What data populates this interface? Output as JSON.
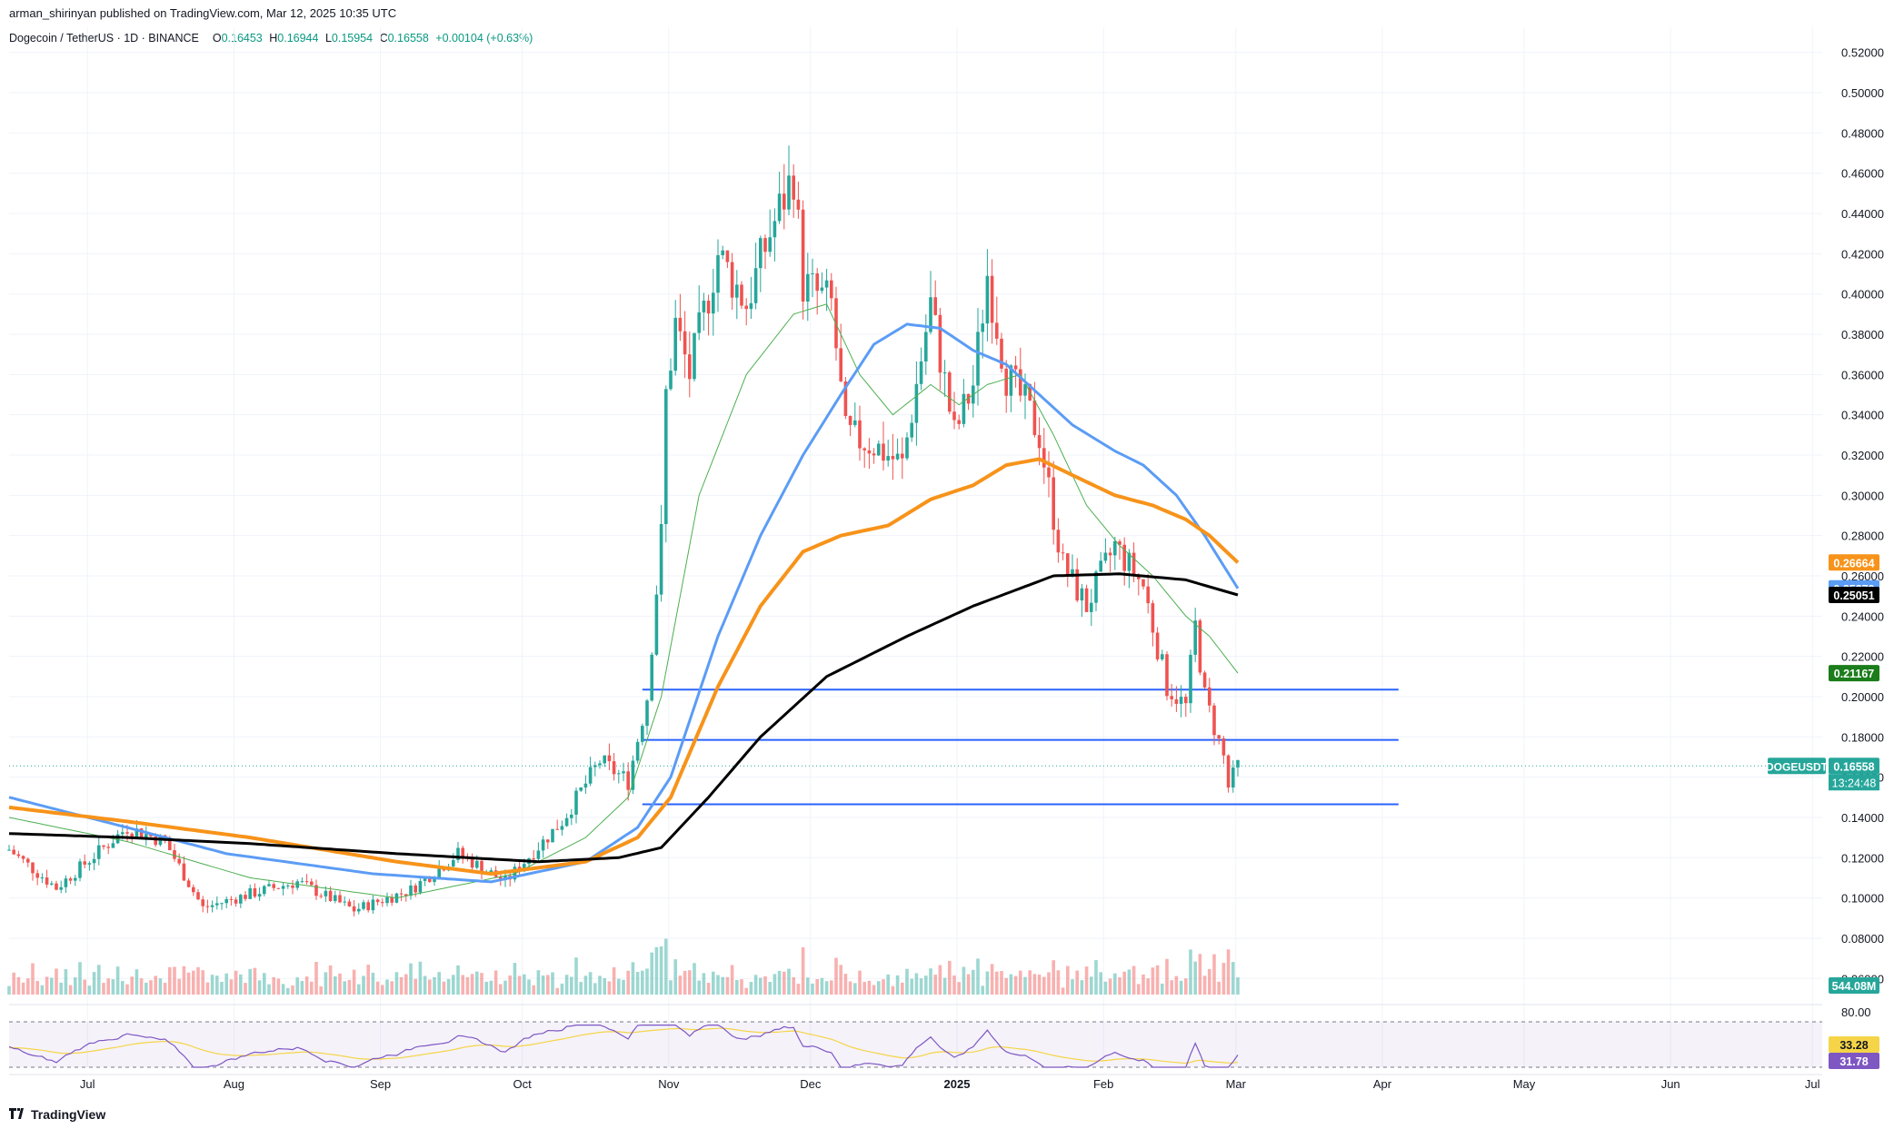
{
  "header": {
    "published": "arman_shirinyan published on TradingView.com, Mar 12, 2025 10:35 UTC",
    "symbol": "Dogecoin / TetherUS · 1D · BINANCE",
    "ohlc": {
      "o_label": "O",
      "o": "0.16453",
      "h_label": "H",
      "h": "0.16944",
      "l_label": "L",
      "l": "0.15954",
      "c_label": "C",
      "c": "0.16558",
      "change": "+0.00104 (+0.63%)"
    }
  },
  "footer": {
    "logo": "TradingView"
  },
  "colors": {
    "up": "#26a69a",
    "down": "#ef5350",
    "ma_fast": "#4caf50",
    "ma_mid": "#5b9cf5",
    "ma_slow": "#f7931a",
    "ma_long": "#000000",
    "level_line": "#2962ff",
    "rsi_line": "#7e57c2",
    "rsi_ma": "#f5d547"
  },
  "chart_data": {
    "type": "line",
    "title": "Dogecoin / TetherUS · 1D · BINANCE",
    "y_axis": {
      "ticks": [
        "0.52000",
        "0.50000",
        "0.48000",
        "0.46000",
        "0.44000",
        "0.42000",
        "0.40000",
        "0.38000",
        "0.36000",
        "0.34000",
        "0.32000",
        "0.30000",
        "0.28000",
        "0.26000",
        "0.24000",
        "0.22000",
        "0.20000",
        "0.18000",
        "0.16000",
        "0.14000",
        "0.12000",
        "0.10000",
        "0.08000",
        "0.06000"
      ],
      "range": [
        0.052,
        0.528
      ]
    },
    "x_axis": {
      "ticks": [
        "Jul",
        "Aug",
        "Sep",
        "Oct",
        "Nov",
        "Dec",
        "2025",
        "Feb",
        "Mar",
        "Apr",
        "May",
        "Jun",
        "Jul"
      ],
      "bold": [
        "2025"
      ]
    },
    "price_anchors": [
      {
        "date": "2024-06-25",
        "close": 0.124
      },
      {
        "date": "2024-07-05",
        "close": 0.105
      },
      {
        "date": "2024-07-20",
        "close": 0.135
      },
      {
        "date": "2024-07-28",
        "close": 0.128
      },
      {
        "date": "2024-08-05",
        "close": 0.095
      },
      {
        "date": "2024-08-15",
        "close": 0.102
      },
      {
        "date": "2024-08-25",
        "close": 0.108
      },
      {
        "date": "2024-09-06",
        "close": 0.094
      },
      {
        "date": "2024-09-18",
        "close": 0.104
      },
      {
        "date": "2024-09-28",
        "close": 0.122
      },
      {
        "date": "2024-10-08",
        "close": 0.108
      },
      {
        "date": "2024-10-20",
        "close": 0.138
      },
      {
        "date": "2024-10-28",
        "close": 0.168
      },
      {
        "date": "2024-11-03",
        "close": 0.158
      },
      {
        "date": "2024-11-07",
        "close": 0.2
      },
      {
        "date": "2024-11-10",
        "close": 0.28
      },
      {
        "date": "2024-11-11",
        "close": 0.35
      },
      {
        "date": "2024-11-13",
        "close": 0.385
      },
      {
        "date": "2024-11-16",
        "close": 0.36
      },
      {
        "date": "2024-11-22",
        "close": 0.42
      },
      {
        "date": "2024-11-28",
        "close": 0.395
      },
      {
        "date": "2024-12-03",
        "close": 0.43
      },
      {
        "date": "2024-12-08",
        "close": 0.46
      },
      {
        "date": "2024-12-10",
        "close": 0.405
      },
      {
        "date": "2024-12-16",
        "close": 0.395
      },
      {
        "date": "2024-12-19",
        "close": 0.33
      },
      {
        "date": "2024-12-25",
        "close": 0.325
      },
      {
        "date": "2024-12-31",
        "close": 0.315
      },
      {
        "date": "2025-01-06",
        "close": 0.395
      },
      {
        "date": "2025-01-11",
        "close": 0.33
      },
      {
        "date": "2025-01-15",
        "close": 0.355
      },
      {
        "date": "2025-01-18",
        "close": 0.41
      },
      {
        "date": "2025-01-22",
        "close": 0.36
      },
      {
        "date": "2025-01-26",
        "close": 0.345
      },
      {
        "date": "2025-01-29",
        "close": 0.33
      },
      {
        "date": "2025-02-01",
        "close": 0.29
      },
      {
        "date": "2025-02-03",
        "close": 0.265
      },
      {
        "date": "2025-02-08",
        "close": 0.245
      },
      {
        "date": "2025-02-14",
        "close": 0.275
      },
      {
        "date": "2025-02-20",
        "close": 0.255
      },
      {
        "date": "2025-02-25",
        "close": 0.205
      },
      {
        "date": "2025-03-01",
        "close": 0.195
      },
      {
        "date": "2025-03-03",
        "close": 0.235
      },
      {
        "date": "2025-03-05",
        "close": 0.2
      },
      {
        "date": "2025-03-09",
        "close": 0.17
      },
      {
        "date": "2025-03-10",
        "close": 0.155
      },
      {
        "date": "2025-03-12",
        "close": 0.16558
      }
    ],
    "series": [
      {
        "id": "ma_fast",
        "anchors": [
          {
            "date": "2024-06-25",
            "value": 0.14
          },
          {
            "date": "2024-07-20",
            "value": 0.128
          },
          {
            "date": "2024-08-15",
            "value": 0.11
          },
          {
            "date": "2024-09-15",
            "value": 0.1
          },
          {
            "date": "2024-10-10",
            "value": 0.112
          },
          {
            "date": "2024-10-25",
            "value": 0.13
          },
          {
            "date": "2024-11-03",
            "value": 0.15
          },
          {
            "date": "2024-11-10",
            "value": 0.2
          },
          {
            "date": "2024-11-18",
            "value": 0.3
          },
          {
            "date": "2024-11-28",
            "value": 0.36
          },
          {
            "date": "2024-12-08",
            "value": 0.39
          },
          {
            "date": "2024-12-15",
            "value": 0.395
          },
          {
            "date": "2024-12-22",
            "value": 0.36
          },
          {
            "date": "2024-12-29",
            "value": 0.34
          },
          {
            "date": "2025-01-06",
            "value": 0.355
          },
          {
            "date": "2025-01-12",
            "value": 0.345
          },
          {
            "date": "2025-01-18",
            "value": 0.355
          },
          {
            "date": "2025-01-25",
            "value": 0.36
          },
          {
            "date": "2025-02-01",
            "value": 0.33
          },
          {
            "date": "2025-02-08",
            "value": 0.295
          },
          {
            "date": "2025-02-15",
            "value": 0.275
          },
          {
            "date": "2025-02-22",
            "value": 0.26
          },
          {
            "date": "2025-03-01",
            "value": 0.24
          },
          {
            "date": "2025-03-06",
            "value": 0.23
          },
          {
            "date": "2025-03-12",
            "value": 0.21167
          }
        ]
      },
      {
        "id": "ma_mid",
        "anchors": [
          {
            "date": "2024-06-25",
            "value": 0.15
          },
          {
            "date": "2024-07-20",
            "value": 0.135
          },
          {
            "date": "2024-08-10",
            "value": 0.122
          },
          {
            "date": "2024-09-10",
            "value": 0.112
          },
          {
            "date": "2024-10-05",
            "value": 0.108
          },
          {
            "date": "2024-10-25",
            "value": 0.118
          },
          {
            "date": "2024-11-05",
            "value": 0.135
          },
          {
            "date": "2024-11-12",
            "value": 0.16
          },
          {
            "date": "2024-11-22",
            "value": 0.23
          },
          {
            "date": "2024-12-01",
            "value": 0.28
          },
          {
            "date": "2024-12-10",
            "value": 0.32
          },
          {
            "date": "2024-12-18",
            "value": 0.35
          },
          {
            "date": "2024-12-25",
            "value": 0.375
          },
          {
            "date": "2025-01-01",
            "value": 0.385
          },
          {
            "date": "2025-01-08",
            "value": 0.383
          },
          {
            "date": "2025-01-15",
            "value": 0.372
          },
          {
            "date": "2025-01-22",
            "value": 0.365
          },
          {
            "date": "2025-01-29",
            "value": 0.35
          },
          {
            "date": "2025-02-05",
            "value": 0.335
          },
          {
            "date": "2025-02-14",
            "value": 0.322
          },
          {
            "date": "2025-02-20",
            "value": 0.315
          },
          {
            "date": "2025-02-27",
            "value": 0.3
          },
          {
            "date": "2025-03-05",
            "value": 0.28
          },
          {
            "date": "2025-03-12",
            "value": 0.25379
          }
        ]
      },
      {
        "id": "ma_slow",
        "anchors": [
          {
            "date": "2024-06-25",
            "value": 0.145
          },
          {
            "date": "2024-07-20",
            "value": 0.138
          },
          {
            "date": "2024-08-15",
            "value": 0.13
          },
          {
            "date": "2024-09-15",
            "value": 0.118
          },
          {
            "date": "2024-10-05",
            "value": 0.112
          },
          {
            "date": "2024-10-25",
            "value": 0.118
          },
          {
            "date": "2024-11-05",
            "value": 0.13
          },
          {
            "date": "2024-11-12",
            "value": 0.15
          },
          {
            "date": "2024-11-22",
            "value": 0.205
          },
          {
            "date": "2024-12-01",
            "value": 0.245
          },
          {
            "date": "2024-12-10",
            "value": 0.272
          },
          {
            "date": "2024-12-18",
            "value": 0.28
          },
          {
            "date": "2024-12-28",
            "value": 0.285
          },
          {
            "date": "2025-01-06",
            "value": 0.298
          },
          {
            "date": "2025-01-15",
            "value": 0.305
          },
          {
            "date": "2025-01-22",
            "value": 0.315
          },
          {
            "date": "2025-01-29",
            "value": 0.318
          },
          {
            "date": "2025-02-05",
            "value": 0.31
          },
          {
            "date": "2025-02-14",
            "value": 0.3
          },
          {
            "date": "2025-02-22",
            "value": 0.295
          },
          {
            "date": "2025-03-01",
            "value": 0.288
          },
          {
            "date": "2025-03-06",
            "value": 0.28
          },
          {
            "date": "2025-03-12",
            "value": 0.26664
          }
        ]
      },
      {
        "id": "ma_long",
        "anchors": [
          {
            "date": "2024-06-25",
            "value": 0.132
          },
          {
            "date": "2024-07-20",
            "value": 0.13
          },
          {
            "date": "2024-08-15",
            "value": 0.127
          },
          {
            "date": "2024-09-15",
            "value": 0.122
          },
          {
            "date": "2024-10-15",
            "value": 0.118
          },
          {
            "date": "2024-11-01",
            "value": 0.12
          },
          {
            "date": "2024-11-10",
            "value": 0.125
          },
          {
            "date": "2024-11-20",
            "value": 0.15
          },
          {
            "date": "2024-12-01",
            "value": 0.18
          },
          {
            "date": "2024-12-15",
            "value": 0.21
          },
          {
            "date": "2025-01-01",
            "value": 0.23
          },
          {
            "date": "2025-01-15",
            "value": 0.245
          },
          {
            "date": "2025-02-01",
            "value": 0.26
          },
          {
            "date": "2025-02-15",
            "value": 0.261
          },
          {
            "date": "2025-03-01",
            "value": 0.258
          },
          {
            "date": "2025-03-12",
            "value": 0.25051
          }
        ]
      }
    ],
    "horizontal_levels": [
      0.2035,
      0.1785,
      0.1465
    ],
    "level_span": {
      "start": "2024-11-06",
      "end": "2025-04-15"
    },
    "price_labels": [
      {
        "id": "ma_slow",
        "text": "0.26664",
        "value": 0.26664
      },
      {
        "id": "ma_mid",
        "text": "0.25379",
        "value": 0.25379
      },
      {
        "id": "ma_long",
        "text": "0.25051",
        "value": 0.25051
      },
      {
        "id": "ma_fast",
        "text": "0.21167",
        "value": 0.21167
      },
      {
        "id": "last",
        "text": "0.16558",
        "value": 0.16558
      }
    ],
    "last_price": {
      "symbol": "DOGEUSDT",
      "value": "0.16558",
      "countdown": "13:24:48"
    },
    "volume": {
      "last_label": "544.08M",
      "max_value": 1.0
    },
    "rsi": {
      "levels": [
        "80.00"
      ],
      "labels": [
        {
          "text": "33.28",
          "color": "#f5d547"
        },
        {
          "text": "31.78",
          "color": "#7e57c2"
        }
      ]
    }
  }
}
